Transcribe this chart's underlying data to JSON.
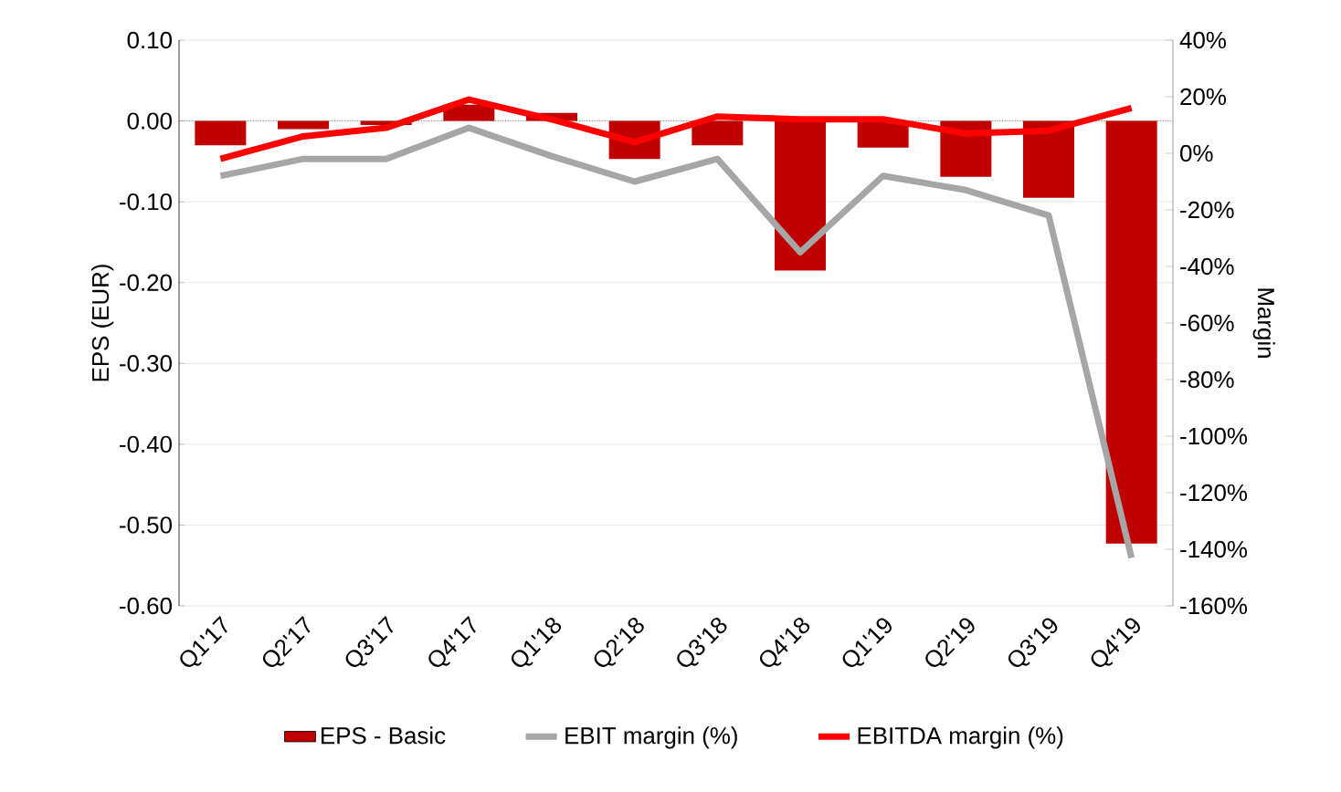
{
  "chart_data": {
    "type": "bar",
    "ylabel": "EPS (EUR)",
    "y2label": "Margin",
    "categories": [
      "Q1'17",
      "Q2'17",
      "Q3'17",
      "Q4'17",
      "Q1'18",
      "Q2'18",
      "Q3'18",
      "Q4'18",
      "Q1'19",
      "Q2'19",
      "Q3'19",
      "Q4'19"
    ],
    "series": [
      {
        "name": "EPS - Basic",
        "color": "#c00000",
        "values": [
          -0.03,
          -0.01,
          -0.005,
          0.02,
          0.01,
          -0.047,
          -0.03,
          -0.185,
          -0.033,
          -0.069,
          -0.095,
          -0.523
        ]
      },
      {
        "name": "EBIT margin (%)",
        "type": "line",
        "axis": "y2",
        "color": "#a6a6a6",
        "values": [
          -8,
          -2,
          -2,
          9,
          -1,
          -10,
          -2,
          -35,
          -8,
          -13,
          -22,
          -143
        ]
      },
      {
        "name": "EBITDA margin (%)",
        "type": "line",
        "axis": "y2",
        "color": "#ff0000",
        "values": [
          -2,
          6,
          9,
          19,
          12,
          4,
          13,
          12,
          12,
          7,
          8,
          16
        ]
      }
    ],
    "ylim": [
      -0.6,
      0.1
    ],
    "yticks": [
      {
        "value": -0.6,
        "label": "-0.60"
      },
      {
        "value": -0.5,
        "label": "-0.50"
      },
      {
        "value": -0.4,
        "label": "-0.40"
      },
      {
        "value": -0.3,
        "label": "-0.30"
      },
      {
        "value": -0.2,
        "label": "-0.20"
      },
      {
        "value": -0.1,
        "label": "-0.10"
      },
      {
        "value": 0,
        "label": "0.00"
      },
      {
        "value": 0.1,
        "label": "0.10"
      }
    ],
    "y2lim": [
      -160,
      40
    ],
    "y2ticks": [
      {
        "value": -160,
        "label": "-160%"
      },
      {
        "value": -140,
        "label": "-140%"
      },
      {
        "value": -120,
        "label": "-120%"
      },
      {
        "value": -100,
        "label": "-100%"
      },
      {
        "value": -80,
        "label": "-80%"
      },
      {
        "value": -60,
        "label": "-60%"
      },
      {
        "value": -40,
        "label": "-40%"
      },
      {
        "value": -20,
        "label": "-20%"
      },
      {
        "value": 0,
        "label": "0%"
      },
      {
        "value": 20,
        "label": "20%"
      },
      {
        "value": 40,
        "label": "40%"
      }
    ],
    "ref_lines": [
      {
        "axis": "y",
        "value": 0,
        "line_style": "dotted",
        "color": "#4c4c4c"
      }
    ],
    "grid": "y",
    "legend": "bottom",
    "marker": "none",
    "line_style": "solid"
  }
}
